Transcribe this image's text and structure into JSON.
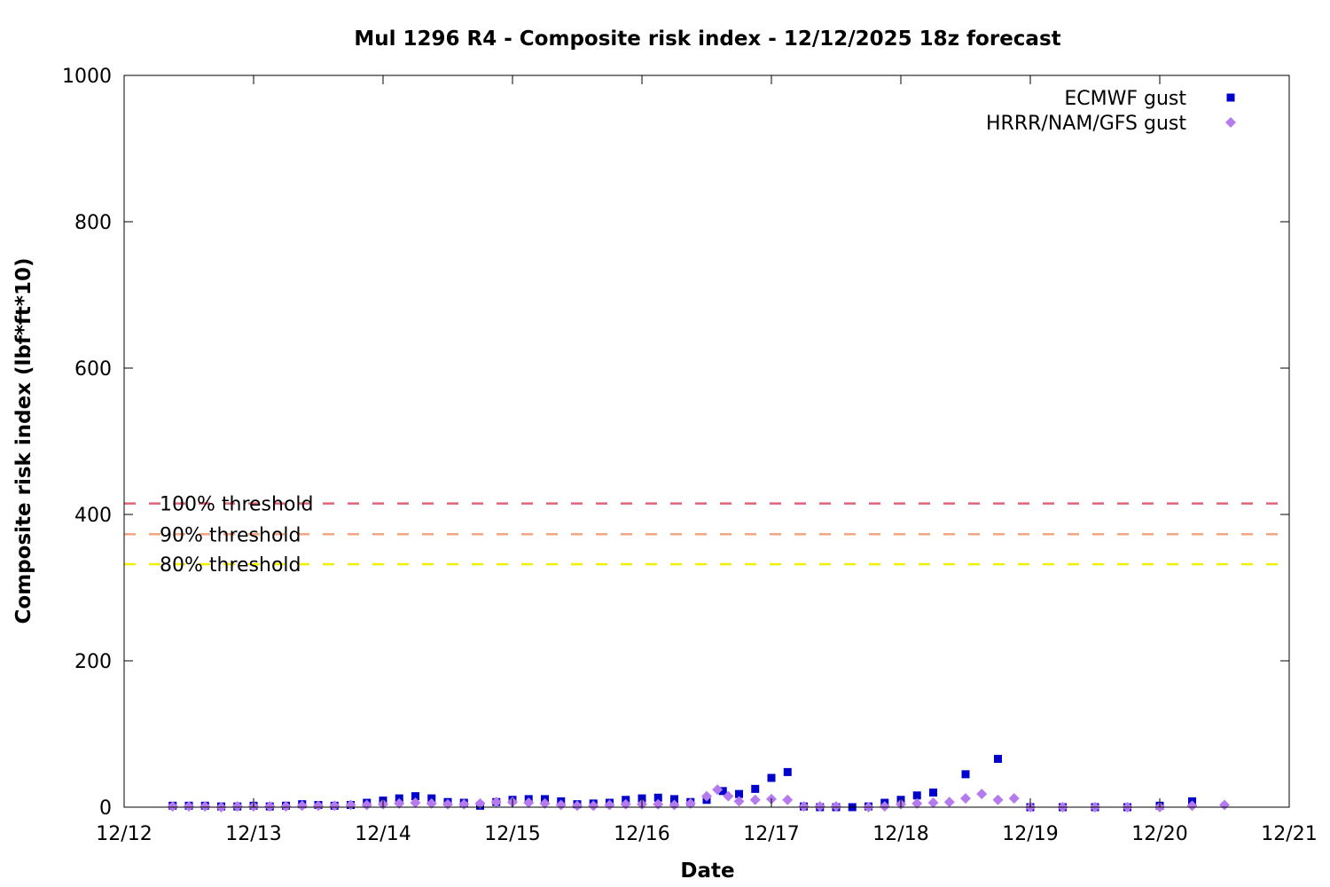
{
  "chart_data": {
    "type": "scatter",
    "title": "Mul 1296 R4 - Composite risk index - 12/12/2025 18z forecast",
    "xlabel": "Date",
    "ylabel": "Composite risk index (lbf*ft*10)",
    "x_ticks": [
      "12/12",
      "12/13",
      "12/14",
      "12/15",
      "12/16",
      "12/17",
      "12/18",
      "12/19",
      "12/20",
      "12/21"
    ],
    "xlim": [
      "12/12",
      "12/21"
    ],
    "ylim": [
      0,
      1000
    ],
    "y_ticks": [
      0,
      200,
      400,
      600,
      800,
      1000
    ],
    "grid": false,
    "legend_position": "top-right",
    "thresholds": [
      {
        "label": "100% threshold",
        "value": 415,
        "color": "#e06377"
      },
      {
        "label": "90% threshold",
        "value": 373,
        "color": "#f4a582"
      },
      {
        "label": "80% threshold",
        "value": 332,
        "color": "#f0f000"
      }
    ],
    "series": [
      {
        "name": "ECMWF gust",
        "marker": "square",
        "color": "#0000cc",
        "points": [
          [
            "12/12 09:00",
            2
          ],
          [
            "12/12 12:00",
            2
          ],
          [
            "12/12 15:00",
            2
          ],
          [
            "12/12 18:00",
            1
          ],
          [
            "12/12 21:00",
            1
          ],
          [
            "12/13 00:00",
            2
          ],
          [
            "12/13 03:00",
            1
          ],
          [
            "12/13 06:00",
            2
          ],
          [
            "12/13 09:00",
            4
          ],
          [
            "12/13 12:00",
            3
          ],
          [
            "12/13 15:00",
            2
          ],
          [
            "12/13 18:00",
            3
          ],
          [
            "12/13 21:00",
            6
          ],
          [
            "12/14 00:00",
            9
          ],
          [
            "12/14 03:00",
            12
          ],
          [
            "12/14 06:00",
            15
          ],
          [
            "12/14 09:00",
            12
          ],
          [
            "12/14 12:00",
            7
          ],
          [
            "12/14 15:00",
            6
          ],
          [
            "12/14 18:00",
            2
          ],
          [
            "12/14 21:00",
            7
          ],
          [
            "12/15 00:00",
            10
          ],
          [
            "12/15 03:00",
            11
          ],
          [
            "12/15 06:00",
            11
          ],
          [
            "12/15 09:00",
            8
          ],
          [
            "12/15 12:00",
            4
          ],
          [
            "12/15 15:00",
            5
          ],
          [
            "12/15 18:00",
            6
          ],
          [
            "12/15 21:00",
            10
          ],
          [
            "12/16 00:00",
            12
          ],
          [
            "12/16 03:00",
            13
          ],
          [
            "12/16 06:00",
            11
          ],
          [
            "12/16 09:00",
            7
          ],
          [
            "12/16 12:00",
            10
          ],
          [
            "12/16 15:00",
            22
          ],
          [
            "12/16 18:00",
            18
          ],
          [
            "12/16 21:00",
            25
          ],
          [
            "12/17 00:00",
            40
          ],
          [
            "12/17 03:00",
            48
          ],
          [
            "12/17 06:00",
            1
          ],
          [
            "12/17 09:00",
            0
          ],
          [
            "12/17 12:00",
            0
          ],
          [
            "12/17 15:00",
            0
          ],
          [
            "12/17 18:00",
            1
          ],
          [
            "12/17 21:00",
            6
          ],
          [
            "12/18 00:00",
            10
          ],
          [
            "12/18 03:00",
            16
          ],
          [
            "12/18 06:00",
            20
          ],
          [
            "12/18 12:00",
            45
          ],
          [
            "12/18 18:00",
            66
          ],
          [
            "12/19 00:00",
            0
          ],
          [
            "12/19 06:00",
            0
          ],
          [
            "12/19 12:00",
            0
          ],
          [
            "12/19 18:00",
            0
          ],
          [
            "12/20 00:00",
            2
          ],
          [
            "12/20 06:00",
            8
          ]
        ]
      },
      {
        "name": "HRRR/NAM/GFS gust",
        "marker": "diamond",
        "color": "#b57bee",
        "points": [
          [
            "12/12 09:00",
            1
          ],
          [
            "12/12 12:00",
            1
          ],
          [
            "12/12 15:00",
            1
          ],
          [
            "12/12 18:00",
            0
          ],
          [
            "12/12 21:00",
            1
          ],
          [
            "12/13 00:00",
            1
          ],
          [
            "12/13 03:00",
            1
          ],
          [
            "12/13 06:00",
            1
          ],
          [
            "12/13 09:00",
            2
          ],
          [
            "12/13 12:00",
            2
          ],
          [
            "12/13 15:00",
            2
          ],
          [
            "12/13 18:00",
            3
          ],
          [
            "12/13 21:00",
            3
          ],
          [
            "12/14 00:00",
            4
          ],
          [
            "12/14 03:00",
            5
          ],
          [
            "12/14 06:00",
            6
          ],
          [
            "12/14 09:00",
            5
          ],
          [
            "12/14 12:00",
            4
          ],
          [
            "12/14 15:00",
            4
          ],
          [
            "12/14 18:00",
            5
          ],
          [
            "12/14 21:00",
            7
          ],
          [
            "12/15 00:00",
            7
          ],
          [
            "12/15 03:00",
            6
          ],
          [
            "12/15 06:00",
            5
          ],
          [
            "12/15 09:00",
            3
          ],
          [
            "12/15 12:00",
            2
          ],
          [
            "12/15 15:00",
            2
          ],
          [
            "12/15 18:00",
            3
          ],
          [
            "12/15 21:00",
            4
          ],
          [
            "12/16 00:00",
            4
          ],
          [
            "12/16 03:00",
            4
          ],
          [
            "12/16 06:00",
            3
          ],
          [
            "12/16 09:00",
            5
          ],
          [
            "12/16 12:00",
            15
          ],
          [
            "12/16 14:00",
            24
          ],
          [
            "12/16 16:00",
            15
          ],
          [
            "12/16 18:00",
            8
          ],
          [
            "12/16 21:00",
            10
          ],
          [
            "12/17 00:00",
            11
          ],
          [
            "12/17 03:00",
            10
          ],
          [
            "12/17 06:00",
            1
          ],
          [
            "12/17 09:00",
            1
          ],
          [
            "12/17 12:00",
            1
          ],
          [
            "12/17 18:00",
            0
          ],
          [
            "12/17 21:00",
            1
          ],
          [
            "12/18 00:00",
            4
          ],
          [
            "12/18 03:00",
            5
          ],
          [
            "12/18 06:00",
            6
          ],
          [
            "12/18 09:00",
            7
          ],
          [
            "12/18 12:00",
            12
          ],
          [
            "12/18 15:00",
            18
          ],
          [
            "12/18 18:00",
            10
          ],
          [
            "12/18 21:00",
            12
          ],
          [
            "12/19 00:00",
            0
          ],
          [
            "12/19 06:00",
            0
          ],
          [
            "12/19 12:00",
            0
          ],
          [
            "12/19 18:00",
            0
          ],
          [
            "12/20 00:00",
            0
          ],
          [
            "12/20 06:00",
            2
          ],
          [
            "12/20 12:00",
            3
          ]
        ]
      }
    ]
  }
}
